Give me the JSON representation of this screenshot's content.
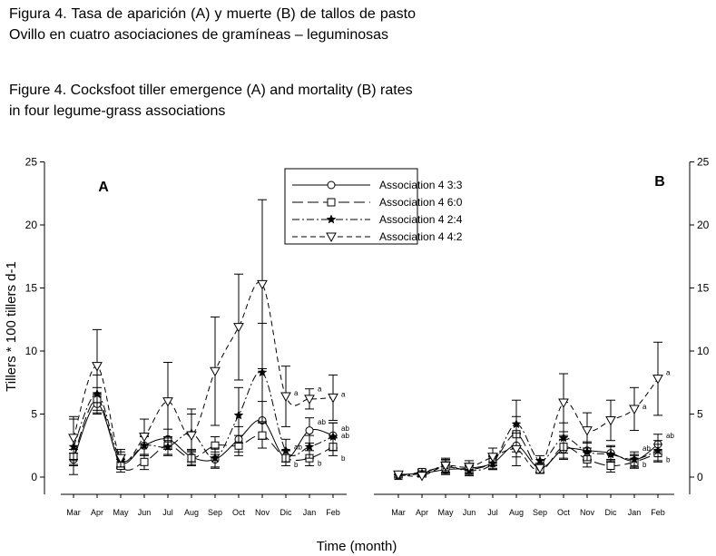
{
  "caption": {
    "spanish": "Figura 4. Tasa de aparición (A) y muerte (B) de tallos de pasto Ovillo en cuatro asociaciones de gramíneas – leguminosas",
    "english": "Figure 4. Cocksfoot tiller emergence (A) and mortality (B) rates in four legume-grass associations"
  },
  "chart_data": [
    {
      "panel": "A",
      "type": "line",
      "title": "A",
      "xlabel": "Time (month)",
      "ylabel": "Tillers * 100 tillers d-1",
      "ylim": [
        0,
        25
      ],
      "yticks": [
        0,
        5,
        10,
        15,
        20,
        25
      ],
      "categories": [
        "Mar",
        "Apr",
        "May",
        "Jun",
        "Jul",
        "Aug",
        "Sep",
        "Oct",
        "Nov",
        "Dic",
        "Jan",
        "Feb"
      ],
      "series": [
        {
          "name": "Association 4 3:3",
          "marker": "circle",
          "dash": "solid",
          "values": [
            1.4,
            5.8,
            1.2,
            2.5,
            3.0,
            1.6,
            1.4,
            3.0,
            4.5,
            1.5,
            3.7,
            3.3
          ],
          "errors": [
            0.5,
            0.8,
            0.5,
            0.7,
            0.8,
            0.6,
            0.6,
            1.0,
            1.5,
            0.6,
            1.0,
            1.0
          ]
        },
        {
          "name": "Association 4 6:0",
          "marker": "square",
          "dash": "longdash",
          "values": [
            1.6,
            6.2,
            0.9,
            1.2,
            2.5,
            1.5,
            2.5,
            2.5,
            3.3,
            1.5,
            1.5,
            2.4
          ],
          "errors": [
            0.6,
            0.9,
            0.5,
            0.6,
            0.7,
            0.6,
            0.7,
            0.8,
            1.0,
            0.6,
            0.6,
            0.7
          ]
        },
        {
          "name": "Association 4 2:4",
          "marker": "star",
          "dash": "dashdot",
          "values": [
            2.4,
            6.6,
            1.4,
            2.5,
            2.4,
            3.5,
            1.5,
            4.9,
            8.3,
            2.1,
            2.4,
            3.2
          ],
          "errors": [
            2.2,
            1.5,
            0.6,
            0.8,
            0.7,
            1.5,
            0.8,
            2.2,
            3.9,
            0.9,
            0.9,
            1.1
          ]
        },
        {
          "name": "Association 4 4:2",
          "marker": "triangle-down",
          "dash": "shortdash",
          "values": [
            3.1,
            8.8,
            1.5,
            3.2,
            6.0,
            3.3,
            8.4,
            11.9,
            15.3,
            6.4,
            6.2,
            6.3
          ],
          "errors": [
            1.7,
            2.9,
            0.7,
            1.4,
            3.1,
            2.1,
            4.3,
            4.2,
            6.7,
            2.4,
            0.8,
            1.8
          ]
        }
      ],
      "annotations": [
        {
          "label": "a",
          "month": "Dic",
          "value": 6.7
        },
        {
          "label": "ab",
          "month": "Dic",
          "value": 2.4
        },
        {
          "label": "b",
          "month": "Dic",
          "value": 1.0
        },
        {
          "label": "a",
          "month": "Jan",
          "value": 7.0
        },
        {
          "label": "ab",
          "month": "Jan",
          "value": 4.4
        },
        {
          "label": "b",
          "month": "Jan",
          "value": 1.1
        },
        {
          "label": "a",
          "month": "Feb",
          "value": 6.6
        },
        {
          "label": "ab",
          "month": "Feb",
          "value": 3.9
        },
        {
          "label": "ab",
          "month": "Feb",
          "value": 3.3
        },
        {
          "label": "b",
          "month": "Feb",
          "value": 1.5
        }
      ]
    },
    {
      "panel": "B",
      "type": "line",
      "title": "B",
      "xlabel": "Time (month)",
      "ylabel": "",
      "ylim": [
        0,
        25
      ],
      "yticks": [
        0,
        5,
        10,
        15,
        20,
        25
      ],
      "categories": [
        "Mar",
        "Apr",
        "May",
        "Jun",
        "Jul",
        "Aug",
        "Sep",
        "Oct",
        "Nov",
        "Dic",
        "Jan",
        "Feb"
      ],
      "series": [
        {
          "name": "Association 4 3:3",
          "marker": "circle",
          "dash": "solid",
          "values": [
            0.2,
            0.3,
            0.6,
            0.7,
            1.1,
            2.5,
            0.7,
            2.2,
            2.1,
            1.9,
            1.3,
            2.6
          ],
          "errors": [
            0.2,
            0.2,
            0.4,
            0.4,
            0.5,
            0.9,
            0.3,
            0.8,
            0.7,
            0.6,
            0.5,
            0.8
          ]
        },
        {
          "name": "Association 4 6:0",
          "marker": "square",
          "dash": "longdash",
          "values": [
            0.1,
            0.4,
            0.8,
            0.6,
            1.2,
            3.4,
            0.6,
            2.4,
            1.4,
            0.9,
            1.2,
            1.9
          ],
          "errors": [
            0.1,
            0.2,
            0.5,
            0.4,
            0.5,
            1.4,
            0.3,
            0.9,
            0.6,
            0.5,
            0.5,
            0.7
          ]
        },
        {
          "name": "Association 4 2:4",
          "marker": "star",
          "dash": "dashdot",
          "values": [
            0.1,
            0.3,
            0.9,
            0.5,
            1.1,
            4.2,
            1.3,
            3.1,
            2.0,
            1.8,
            1.4,
            2.1
          ],
          "errors": [
            0.1,
            0.2,
            0.5,
            0.4,
            0.5,
            1.9,
            0.4,
            1.2,
            0.7,
            0.6,
            0.6,
            0.8
          ]
        },
        {
          "name": "Association 4 4:2",
          "marker": "triangle-down",
          "dash": "shortdash",
          "values": [
            0.2,
            0.1,
            0.9,
            0.8,
            1.6,
            2.2,
            0.7,
            5.9,
            3.7,
            4.5,
            5.4,
            7.8
          ],
          "errors": [
            0.2,
            0.2,
            0.6,
            0.5,
            0.7,
            1.3,
            0.4,
            2.3,
            1.4,
            1.6,
            1.7,
            2.9
          ]
        }
      ],
      "annotations": [
        {
          "label": "a",
          "month": "Jan",
          "value": 5.6
        },
        {
          "label": "b",
          "month": "Jan",
          "value": 1.0
        },
        {
          "label": "ab",
          "month": "Jan",
          "value": 2.3
        },
        {
          "label": "a",
          "month": "Feb",
          "value": 8.3
        },
        {
          "label": "ab",
          "month": "Feb",
          "value": 3.3
        },
        {
          "label": "b",
          "month": "Feb",
          "value": 1.4
        }
      ]
    }
  ]
}
